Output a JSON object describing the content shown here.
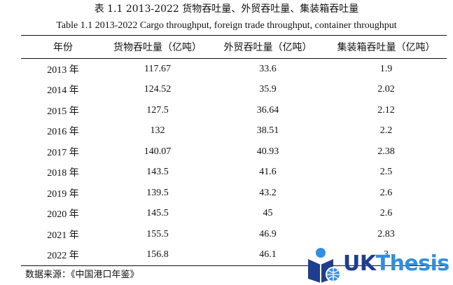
{
  "caption": {
    "cn": "表 1.1 2013-2022 货物吞吐量、外贸吞吐量、集装箱吞吐量",
    "en": "Table 1.1 2013-2022 Cargo throughput, foreign trade throughput, container throughput"
  },
  "table": {
    "headers": [
      "年份",
      "货物吞吐量（亿吨）",
      "外贸吞吐量（亿吨）",
      "集装箱吞吐量（亿吨）"
    ],
    "rows": [
      [
        "2013 年",
        "117.67",
        "33.6",
        "1.9"
      ],
      [
        "2014 年",
        "124.52",
        "35.9",
        "2.02"
      ],
      [
        "2015 年",
        "127.5",
        "36.64",
        "2.12"
      ],
      [
        "2016 年",
        "132",
        "38.51",
        "2.2"
      ],
      [
        "2017 年",
        "140.07",
        "40.93",
        "2.38"
      ],
      [
        "2018 年",
        "143.5",
        "41.6",
        "2.5"
      ],
      [
        "2019 年",
        "139.5",
        "43.2",
        "2.6"
      ],
      [
        "2020 年",
        "145.5",
        "45",
        "2.6"
      ],
      [
        "2021 年",
        "155.5",
        "46.9",
        "2.83"
      ],
      [
        "2022 年",
        "156.8",
        "46.1",
        "3"
      ]
    ]
  },
  "source": "数据来源：《中国港口年鉴》",
  "watermark": {
    "brand_uk": "UK",
    "brand_thesis": "Thesis",
    "icon": "reader-globe-icon",
    "colors": {
      "dark": "#1f3d8f",
      "light": "#2f8fe0"
    }
  }
}
